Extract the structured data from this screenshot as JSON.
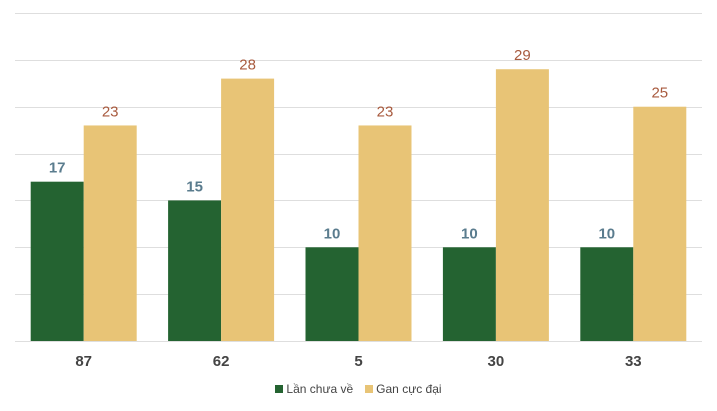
{
  "chart_data": {
    "type": "bar",
    "categories": [
      "87",
      "62",
      "5",
      "30",
      "33"
    ],
    "series": [
      {
        "name": "Lần chưa về",
        "values": [
          17,
          15,
          10,
          10,
          10
        ],
        "color": "#246331",
        "label_color": "#5a7c8e"
      },
      {
        "name": "Gan cực đại",
        "values": [
          23,
          28,
          23,
          29,
          25
        ],
        "color": "#e8c476",
        "label_color": "#a85a3e"
      }
    ],
    "ylim": [
      0,
      35
    ],
    "grid": true,
    "legend_position": "bottom-center",
    "xlabel": "",
    "ylabel": ""
  }
}
